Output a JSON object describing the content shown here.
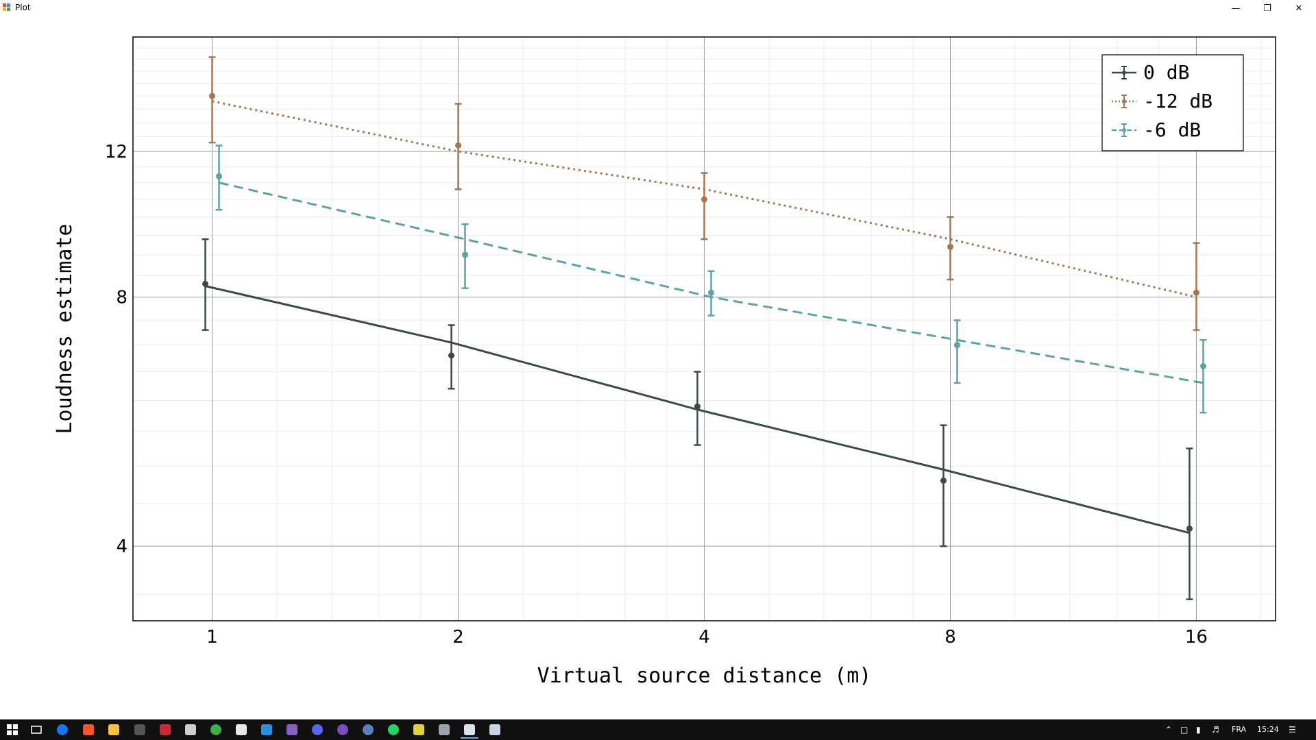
{
  "window": {
    "title": "Plot",
    "minimize_icon": "minimize-icon",
    "maximize_icon": "restore-icon",
    "close_icon": "close-icon"
  },
  "chart_data": {
    "type": "line",
    "xlabel": "Virtual source distance (m)",
    "ylabel": "Loudness estimate",
    "xscale": "log2",
    "yscale": "log",
    "xlim": [
      0.8,
      20
    ],
    "ylim": [
      3.25,
      16.5
    ],
    "xticks": [
      1,
      2,
      4,
      8,
      16
    ],
    "xticklabels": [
      "1",
      "2",
      "4",
      "8",
      "16"
    ],
    "yticks": [
      4,
      8,
      12
    ],
    "yticklabels": [
      "4",
      "8",
      "12"
    ],
    "grid": true,
    "legend_position": "top-right",
    "series": [
      {
        "name": "0 dB",
        "color": "#3b4a47",
        "linestyle": "solid",
        "x": [
          1,
          2,
          4,
          8,
          16
        ],
        "y": [
          8.3,
          6.8,
          5.9,
          4.8,
          4.2
        ],
        "yerr_low": [
          7.3,
          6.2,
          5.3,
          4.0,
          3.45
        ],
        "yerr_high": [
          9.4,
          7.4,
          6.5,
          5.6,
          5.25
        ],
        "fit": [
          8.25,
          7.05,
          5.85,
          4.95,
          4.15
        ]
      },
      {
        "name": "-12 dB",
        "color": "#a87552",
        "linestyle": "dotted",
        "x": [
          1,
          2,
          4,
          8,
          16
        ],
        "y": [
          14.0,
          12.2,
          10.5,
          9.2,
          8.1
        ],
        "yerr_low": [
          12.3,
          10.8,
          9.4,
          8.4,
          7.3
        ],
        "yerr_high": [
          15.6,
          13.7,
          11.3,
          10.0,
          9.3
        ],
        "fit": [
          13.8,
          12.0,
          10.8,
          9.4,
          8.0
        ]
      },
      {
        "name": "-6 dB",
        "color": "#5ea3a4",
        "linestyle": "dashed",
        "x": [
          1,
          2,
          4,
          8,
          16
        ],
        "y": [
          11.2,
          9.0,
          8.1,
          7.0,
          6.6
        ],
        "yerr_low": [
          10.2,
          8.2,
          7.6,
          6.3,
          5.8
        ],
        "yerr_high": [
          12.2,
          9.8,
          8.6,
          7.5,
          7.1
        ],
        "fit": [
          11.0,
          9.4,
          8.0,
          7.1,
          6.3
        ]
      }
    ]
  },
  "taskbar": {
    "icons": [
      "windows-start-icon",
      "task-view-icon",
      "chrome-icon",
      "brave-icon",
      "file-explorer-icon",
      "app-icon",
      "zotero-icon",
      "unity-icon",
      "browser-icon",
      "app-icon-2",
      "vscode-icon",
      "visual-studio-icon",
      "discord-icon",
      "github-icon",
      "r-icon",
      "whatsapp-icon",
      "app-icon-3",
      "calculator-icon",
      "plot-app-icon",
      "paint-icon"
    ],
    "language": "FRA",
    "time": "15:24"
  }
}
